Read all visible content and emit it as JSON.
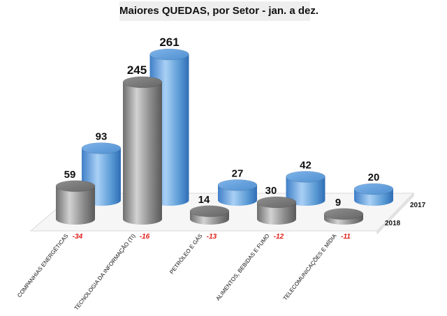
{
  "chart_data": {
    "type": "bar",
    "title": "Maiores QUEDAS, por Setor -  jan. a dez.",
    "categories": [
      "COMPANHIAS ENERGÉTICAS",
      "TECNOLOGIA DA INFORMAÇÃO (TI)",
      "PETRÓLEO E GÁS",
      "ALIMENTOS, BEBIDAS E FUMO",
      "TELECOMUNICAÇÕES E MÍDIA"
    ],
    "series": [
      {
        "name": "2018",
        "values": [
          59,
          245,
          14,
          30,
          9
        ],
        "color": "#8a8a8a"
      },
      {
        "name": "2017",
        "values": [
          93,
          261,
          27,
          42,
          20
        ],
        "color": "#5b9bd5"
      }
    ],
    "differences": [
      "-34",
      "-16",
      "-13",
      "-12",
      "-11"
    ],
    "ylim": [
      0,
      261
    ],
    "grid": false,
    "style": "3d-cylinder"
  }
}
